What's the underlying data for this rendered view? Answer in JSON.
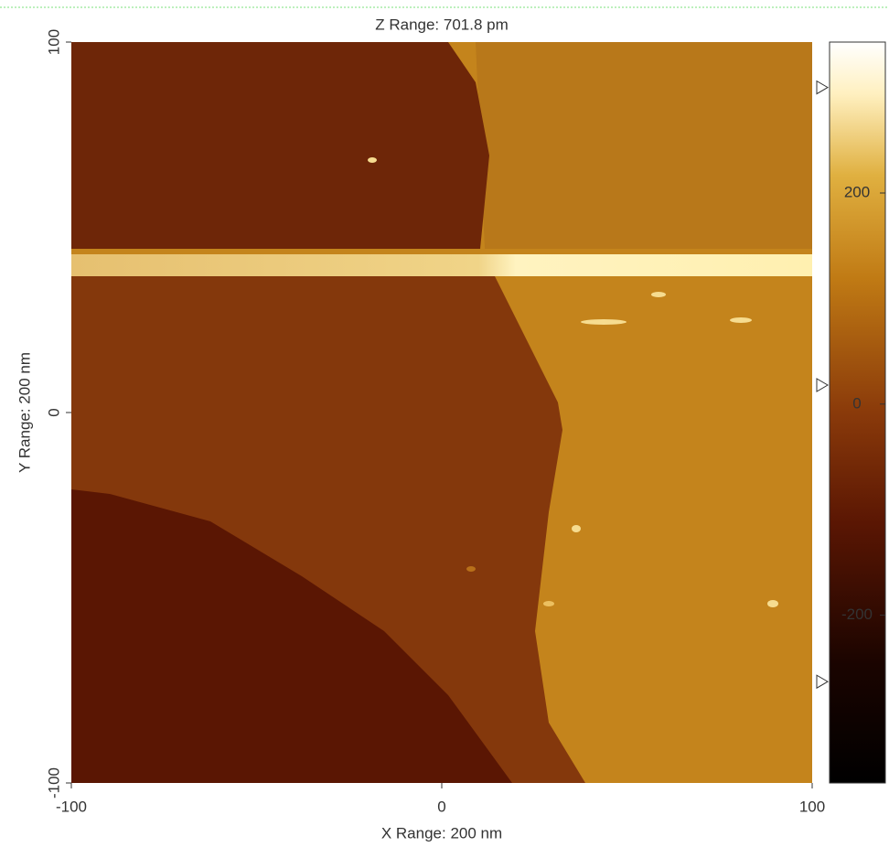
{
  "chart_data": {
    "type": "image",
    "title": "Z Range:  701.8 pm",
    "xlabel": "X Range: 200 nm",
    "ylabel": "Y Range: 200 nm",
    "xlim": [
      -100,
      100
    ],
    "xticks": [
      -100,
      0,
      100
    ],
    "ylim": [
      -100,
      100
    ],
    "yticks": [
      -100,
      0,
      100
    ],
    "colorbar": {
      "lim": [
        -359,
        343
      ],
      "ticks": [
        -200,
        0,
        200
      ],
      "markers": [
        300,
        18,
        -263
      ]
    }
  }
}
